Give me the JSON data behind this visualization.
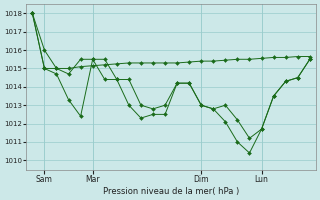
{
  "background_color": "#cce8e8",
  "grid_color": "#99cccc",
  "line_color": "#1a6b1a",
  "ylim": [
    1009.5,
    1018.5
  ],
  "yticks": [
    1010,
    1011,
    1012,
    1013,
    1014,
    1015,
    1016,
    1017,
    1018
  ],
  "xlabel": "Pression niveau de la mer( hPa )",
  "day_labels": [
    "Sam",
    "Mar",
    "Dim",
    "Lun"
  ],
  "series": [
    [
      1018.0,
      1016.0,
      1015.0,
      1014.7,
      1015.5,
      1015.5,
      1014.4,
      1014.4,
      1013.0,
      1012.3,
      1012.5,
      1012.5,
      1014.2,
      1014.2,
      1013.0,
      1012.8,
      1012.1,
      1011.0,
      1010.4,
      1011.7,
      1013.5,
      1014.3,
      1014.5,
      1015.5
    ],
    [
      1018.0,
      1015.0,
      1015.0,
      1015.0,
      1015.1,
      1015.15,
      1015.2,
      1015.25,
      1015.3,
      1015.3,
      1015.3,
      1015.3,
      1015.3,
      1015.35,
      1015.4,
      1015.4,
      1015.45,
      1015.5,
      1015.5,
      1015.55,
      1015.6,
      1015.6,
      1015.65,
      1015.65
    ],
    [
      1018.0,
      1015.0,
      1014.7,
      1013.3,
      1012.4,
      1015.5,
      1015.5,
      1014.4,
      1014.4,
      1013.0,
      1012.8,
      1013.0,
      1014.2,
      1014.2,
      1013.0,
      1012.8,
      1013.0,
      1012.2,
      1011.2,
      1011.7,
      1013.5,
      1014.3,
      1014.5,
      1015.5
    ]
  ],
  "xlim_max": 23
}
